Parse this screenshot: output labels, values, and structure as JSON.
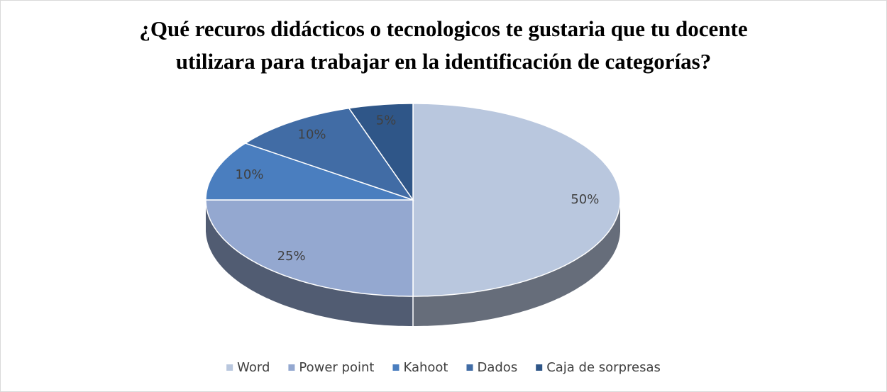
{
  "chart_data": {
    "type": "pie",
    "title": "¿Qué recuros didácticos o tecnologicos te gustaria que tu docente utilizara para trabajar en la identificación de categorías?",
    "categories": [
      "Word",
      "Power point",
      "Kahoot",
      "Dados",
      "Caja de sorpresas"
    ],
    "values": [
      50,
      25,
      10,
      10,
      5
    ],
    "value_labels": [
      "50%",
      "25%",
      "10%",
      "10%",
      "5%"
    ],
    "colors": [
      "#b9c7de",
      "#94a8d0",
      "#4a7ebf",
      "#416ca5",
      "#2f5688"
    ],
    "legend": "bottom"
  }
}
